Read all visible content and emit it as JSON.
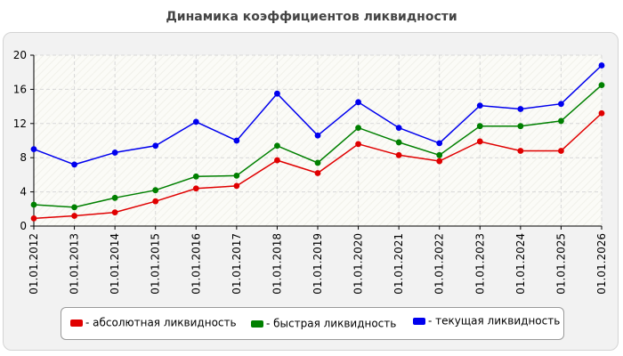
{
  "chart_data": {
    "type": "line",
    "title": "Динамика коэффициентов ликвидности",
    "xlabel": "",
    "ylabel": "",
    "categories": [
      "01.01.2012",
      "01.01.2013",
      "01.01.2014",
      "01.01.2015",
      "01.01.2016",
      "01.01.2017",
      "01.01.2018",
      "01.01.2019",
      "01.01.2020",
      "01.01.2021",
      "01.01.2022",
      "01.01.2023",
      "01.01.2024",
      "01.01.2025",
      "01.01.2026"
    ],
    "ylim": [
      0,
      20
    ],
    "yticks": [
      0,
      4,
      8,
      12,
      16,
      20
    ],
    "grid": true,
    "legend": "bottom",
    "series": [
      {
        "name": "- абсолютная ликвидность",
        "color": "#e00000",
        "values": [
          0.9,
          1.2,
          1.6,
          2.9,
          4.4,
          4.7,
          7.7,
          6.2,
          9.6,
          8.3,
          7.6,
          9.9,
          8.8,
          8.8,
          13.2
        ]
      },
      {
        "name": "- быстрая ликвидность",
        "color": "#008000",
        "values": [
          2.5,
          2.2,
          3.3,
          4.2,
          5.8,
          5.9,
          9.4,
          7.4,
          11.5,
          9.8,
          8.3,
          11.7,
          11.7,
          12.3,
          16.5
        ]
      },
      {
        "name": "- текущая ликвидность",
        "color": "#0000ee",
        "values": [
          9.0,
          7.2,
          8.6,
          9.4,
          12.2,
          10.0,
          15.5,
          10.6,
          14.5,
          11.5,
          9.7,
          14.1,
          13.7,
          14.3,
          18.8
        ]
      }
    ]
  }
}
